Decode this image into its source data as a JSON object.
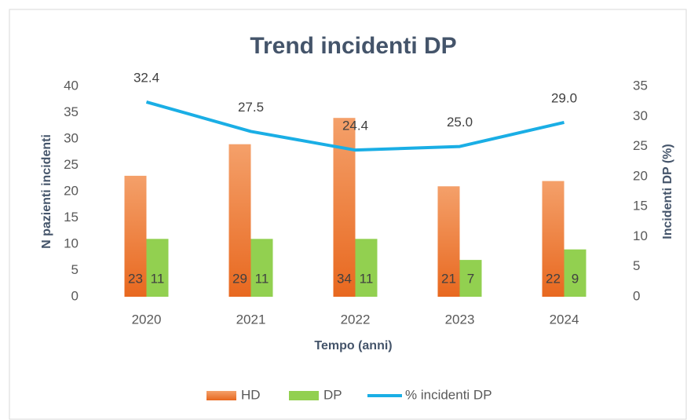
{
  "chart_data": {
    "type": "bar",
    "title": "Trend incidenti DP",
    "xlabel": "Tempo (anni)",
    "ylabel": "N pazienti incidenti",
    "y2label": "Incidenti DP (%)",
    "categories": [
      "2020",
      "2021",
      "2022",
      "2023",
      "2024"
    ],
    "series": [
      {
        "name": "HD",
        "color": "#ed7d31",
        "values": [
          23,
          29,
          34,
          21,
          22
        ]
      },
      {
        "name": "DP",
        "color": "#92d050",
        "values": [
          11,
          11,
          11,
          7,
          9
        ]
      },
      {
        "name": "% incidenti DP",
        "color": "#1aaee5",
        "type": "line",
        "axis": "y2",
        "values": [
          32.4,
          27.5,
          24.4,
          25,
          29
        ],
        "value_labels": [
          "32.4",
          "27.5",
          "24.4",
          "25.0",
          "29.0"
        ]
      }
    ],
    "ylim": [
      0,
      40
    ],
    "yticks": [
      0,
      5,
      10,
      15,
      20,
      25,
      30,
      35,
      40
    ],
    "y2lim": [
      0,
      35
    ],
    "y2ticks": [
      0,
      5,
      10,
      15,
      20,
      25,
      30,
      35
    ],
    "grid": false,
    "legend": "bottom"
  }
}
